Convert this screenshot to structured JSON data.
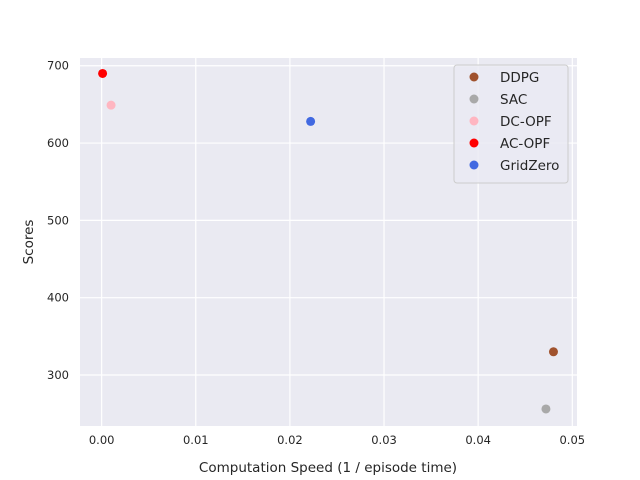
{
  "chart_data": {
    "type": "scatter",
    "title": "",
    "xlabel": "Computation Speed (1 / episode time)",
    "ylabel": "Scores",
    "xlim": [
      -0.0023,
      0.0505
    ],
    "ylim": [
      234,
      710
    ],
    "xticks": [
      "0.00",
      "0.01",
      "0.02",
      "0.03",
      "0.04",
      "0.05"
    ],
    "xtick_values": [
      0.0,
      0.01,
      0.02,
      0.03,
      0.04,
      0.05
    ],
    "yticks": [
      "300",
      "400",
      "500",
      "600",
      "700"
    ],
    "ytick_values": [
      300,
      400,
      500,
      600,
      700
    ],
    "grid": true,
    "background": "#eaeaf2",
    "legend_position": "top-right",
    "series": [
      {
        "name": "DDPG",
        "color": "#a0522d",
        "points": [
          {
            "x": 0.048,
            "y": 330
          }
        ]
      },
      {
        "name": "SAC",
        "color": "#a9a9a9",
        "points": [
          {
            "x": 0.0472,
            "y": 256
          }
        ]
      },
      {
        "name": "DC-OPF",
        "color": "#ffb6c1",
        "points": [
          {
            "x": 0.001,
            "y": 649
          }
        ]
      },
      {
        "name": "AC-OPF",
        "color": "#ff0000",
        "points": [
          {
            "x": 0.0001,
            "y": 690
          }
        ]
      },
      {
        "name": "GridZero",
        "color": "#4169e1",
        "points": [
          {
            "x": 0.0222,
            "y": 628
          }
        ]
      }
    ]
  }
}
